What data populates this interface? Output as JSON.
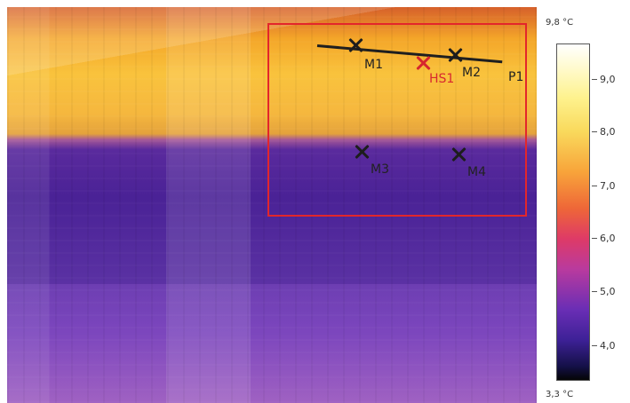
{
  "scale": {
    "max_label": "9,8 °C",
    "min_label": "3,3 °C",
    "ticks": [
      "9,0",
      "8,0",
      "7,0",
      "6,0",
      "5,0",
      "4,0"
    ]
  },
  "annotations": {
    "m1": "M1",
    "m2": "M2",
    "m3": "M3",
    "m4": "M4",
    "hs1": "HS1",
    "p1": "P1"
  },
  "colors": {
    "roi": "#e3262b",
    "marker_dark": "#1d1d1d",
    "marker_red": "#d6262d"
  }
}
